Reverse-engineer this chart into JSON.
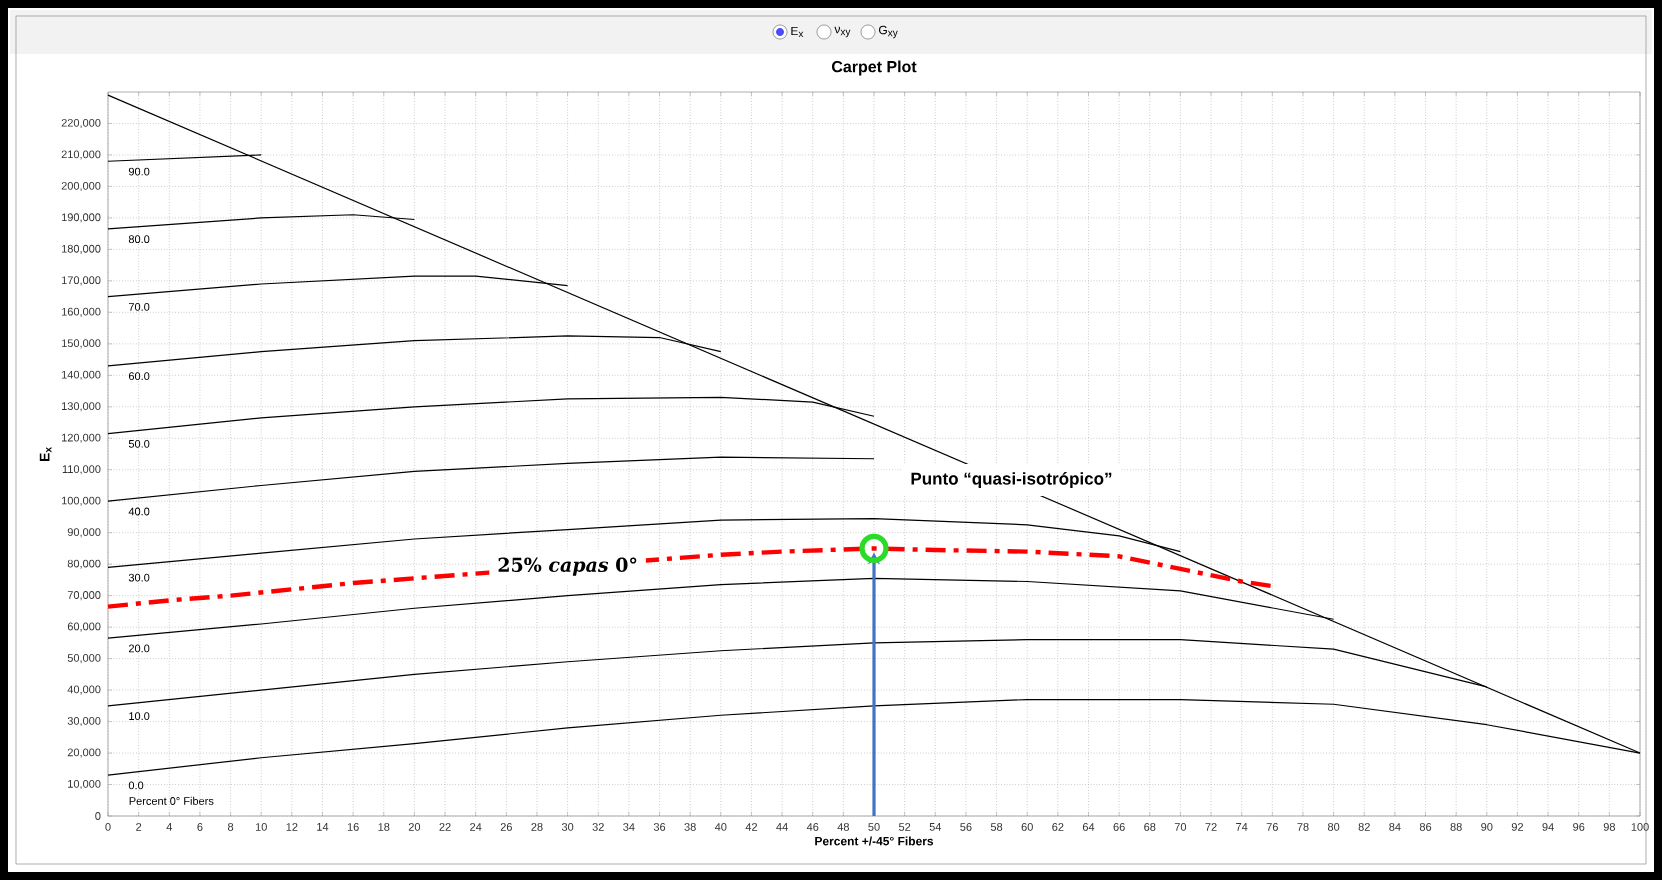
{
  "chart_data": {
    "type": "line",
    "title": "Carpet Plot",
    "xlabel": "Percent +/-45° Fibers",
    "ylabel": "E$_{x}$",
    "xlim": [
      0,
      100
    ],
    "ylim": [
      0,
      230000
    ],
    "xticks": [
      0,
      2,
      4,
      6,
      8,
      10,
      12,
      14,
      16,
      18,
      20,
      22,
      24,
      26,
      28,
      30,
      32,
      34,
      36,
      38,
      40,
      42,
      44,
      46,
      48,
      50,
      52,
      54,
      56,
      58,
      60,
      62,
      64,
      66,
      68,
      70,
      72,
      74,
      76,
      78,
      80,
      82,
      84,
      86,
      88,
      90,
      92,
      94,
      96,
      98,
      100
    ],
    "yticks": [
      0,
      {
        "value": 10000,
        "label": "10,000"
      },
      {
        "value": 20000,
        "label": "20,000"
      },
      {
        "value": 30000,
        "label": "30,000"
      },
      {
        "value": 40000,
        "label": "40,000"
      },
      {
        "value": 50000,
        "label": "50,000"
      },
      {
        "value": 60000,
        "label": "60,000"
      },
      {
        "value": 70000,
        "label": "70,000"
      },
      {
        "value": 80000,
        "label": "80,000"
      },
      {
        "value": 90000,
        "label": "90,000"
      },
      {
        "value": 100000,
        "label": "100,000"
      },
      {
        "value": 110000,
        "label": "110,000"
      },
      {
        "value": 120000,
        "label": "120,000"
      },
      {
        "value": 130000,
        "label": "130,000"
      },
      {
        "value": 140000,
        "label": "140,000"
      },
      {
        "value": 150000,
        "label": "150,000"
      },
      {
        "value": 160000,
        "label": "160,000"
      },
      {
        "value": 170000,
        "label": "170,000"
      },
      {
        "value": 180000,
        "label": "180,000"
      },
      {
        "value": 190000,
        "label": "190,000"
      },
      {
        "value": 200000,
        "label": "200,000"
      },
      {
        "value": 210000,
        "label": "210,000"
      },
      {
        "value": 220000,
        "label": "220,000"
      }
    ],
    "grid": true,
    "marker": "none",
    "series": [
      {
        "name": "0.0",
        "color": "#000000",
        "x": [
          0,
          10,
          20,
          30,
          40,
          50,
          60,
          70,
          80,
          90,
          100
        ],
        "values": [
          13000,
          18500,
          23000,
          28000,
          32000,
          35000,
          37000,
          37000,
          35500,
          29000,
          20000
        ]
      },
      {
        "name": "10.0",
        "color": "#000000",
        "x": [
          0,
          10,
          20,
          30,
          40,
          50,
          60,
          70,
          80,
          90
        ],
        "values": [
          35000,
          40000,
          45000,
          49000,
          52500,
          55000,
          56000,
          56000,
          53000,
          41000
        ]
      },
      {
        "name": "20.0",
        "color": "#000000",
        "x": [
          0,
          10,
          20,
          30,
          40,
          50,
          60,
          70,
          80
        ],
        "values": [
          56500,
          61000,
          66000,
          70000,
          73500,
          75500,
          74500,
          71500,
          62500
        ]
      },
      {
        "name": "30.0",
        "color": "#000000",
        "x": [
          0,
          10,
          20,
          30,
          40,
          50,
          60,
          66,
          70
        ],
        "values": [
          79000,
          83500,
          88000,
          91000,
          94000,
          94500,
          92500,
          89000,
          84000
        ]
      },
      {
        "name": "40.0",
        "color": "#000000",
        "x": [
          0,
          10,
          20,
          30,
          40,
          50
        ],
        "values": [
          100000,
          105000,
          109500,
          112000,
          114000,
          113500
        ]
      },
      {
        "name": "50.0",
        "color": "#000000",
        "x": [
          0,
          10,
          20,
          30,
          40,
          46,
          50
        ],
        "values": [
          121500,
          126500,
          130000,
          132500,
          133000,
          131500,
          127000
        ]
      },
      {
        "name": "60.0",
        "color": "#000000",
        "x": [
          0,
          10,
          20,
          30,
          36,
          40
        ],
        "values": [
          143000,
          147500,
          151000,
          152500,
          152000,
          147500
        ]
      },
      {
        "name": "70.0",
        "color": "#000000",
        "x": [
          0,
          10,
          20,
          24,
          30
        ],
        "values": [
          165000,
          169000,
          171500,
          171500,
          168500
        ]
      },
      {
        "name": "80.0",
        "color": "#000000",
        "x": [
          0,
          10,
          16,
          20
        ],
        "values": [
          186500,
          190000,
          191000,
          189500
        ]
      },
      {
        "name": "90.0",
        "color": "#000000",
        "x": [
          0,
          10
        ],
        "values": [
          208000,
          210000
        ]
      },
      {
        "color": "#000000",
        "x": [
          0,
          100
        ],
        "values": [
          229000,
          20000
        ]
      },
      {
        "name": "25% *capas* 0°",
        "color": "#ff0000",
        "line_style": "dashdot",
        "x": [
          0,
          4,
          8,
          12,
          16,
          20,
          40,
          44,
          50,
          54,
          60,
          66,
          70,
          74,
          76
        ],
        "values": [
          66500,
          68500,
          70000,
          72000,
          74000,
          75500,
          83000,
          84000,
          85000,
          84500,
          84000,
          82500,
          78500,
          74500,
          73000
        ]
      }
    ],
    "annotations": [
      "E$_{x}$",
      "ν$_{xy}$",
      "G$_{xy}$",
      "Percent 0° Fibers",
      "Punto “quasi-isotrópico”"
    ]
  }
}
